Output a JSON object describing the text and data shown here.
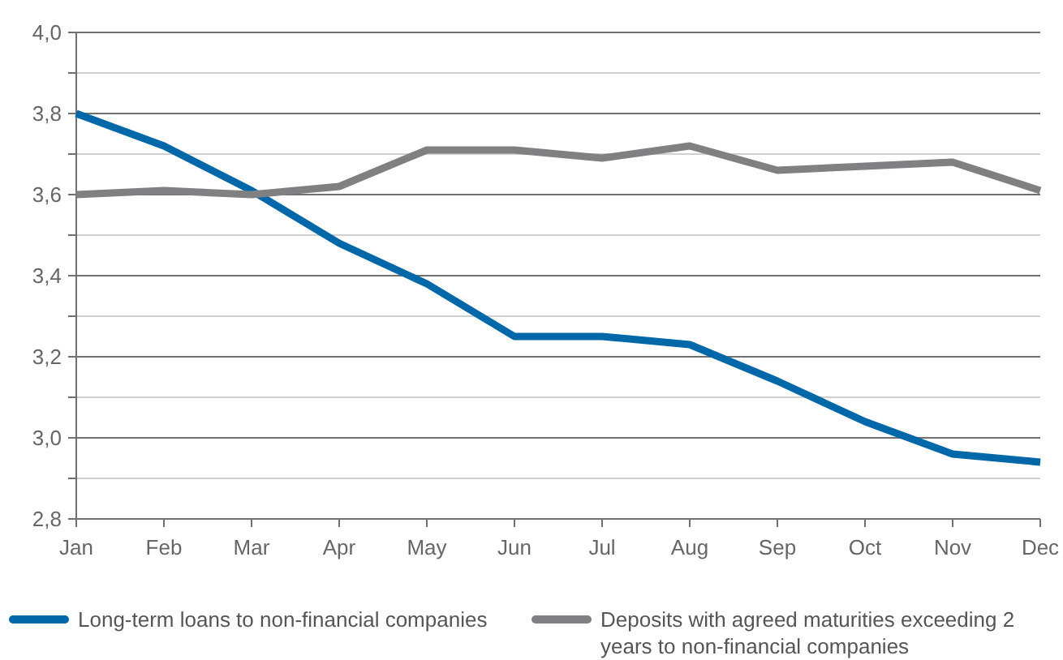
{
  "chart_data": {
    "type": "line",
    "categories": [
      "Jan",
      "Feb",
      "Mar",
      "Apr",
      "May",
      "Jun",
      "Jul",
      "Aug",
      "Sep",
      "Oct",
      "Nov",
      "Dec"
    ],
    "series": [
      {
        "name": "Long-term loans to non-financial companies",
        "color": "#0068a8",
        "values": [
          3.8,
          3.72,
          3.61,
          3.48,
          3.38,
          3.25,
          3.25,
          3.23,
          3.14,
          3.04,
          2.96,
          2.94
        ]
      },
      {
        "name": "Deposits with agreed maturities exceeding 2 years to non-financial companies",
        "color": "#808083",
        "values": [
          3.6,
          3.61,
          3.6,
          3.62,
          3.71,
          3.71,
          3.69,
          3.72,
          3.66,
          3.67,
          3.68,
          3.61
        ]
      }
    ],
    "ylim": [
      2.8,
      4.0
    ],
    "yticks": [
      {
        "value": 2.8,
        "label": "2,8"
      },
      {
        "value": 2.9,
        "label": null
      },
      {
        "value": 3.0,
        "label": "3,0"
      },
      {
        "value": 3.1,
        "label": null
      },
      {
        "value": 3.2,
        "label": "3,2"
      },
      {
        "value": 3.3,
        "label": null
      },
      {
        "value": 3.4,
        "label": "3,4"
      },
      {
        "value": 3.5,
        "label": null
      },
      {
        "value": 3.6,
        "label": "3,6"
      },
      {
        "value": 3.7,
        "label": null
      },
      {
        "value": 3.8,
        "label": "3,8"
      },
      {
        "value": 3.9,
        "label": null
      },
      {
        "value": 4.0,
        "label": "4,0"
      }
    ],
    "grid": "y",
    "legend": "bottom",
    "marker": "none",
    "line_style": "solid"
  }
}
